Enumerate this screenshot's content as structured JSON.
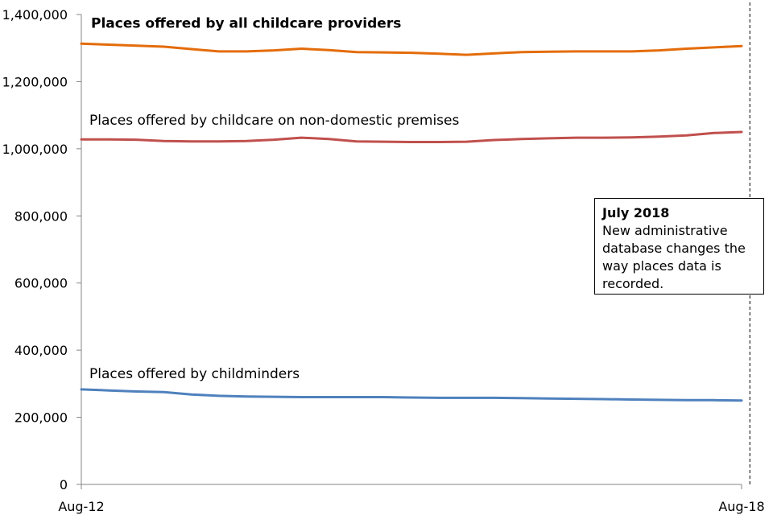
{
  "chart_data": {
    "type": "line",
    "title": "",
    "xlabel": "",
    "ylabel": "",
    "ylim": [
      0,
      1400000
    ],
    "yticks": [
      0,
      200000,
      400000,
      600000,
      800000,
      1000000,
      1200000,
      1400000
    ],
    "ytick_labels": [
      "0",
      "200,000",
      "400,000",
      "600,000",
      "800,000",
      "1,000,000",
      "1,200,000",
      "1,400,000"
    ],
    "xtick_labels": [
      "Aug-12",
      "Aug-18"
    ],
    "x_periods": 25,
    "grid": false,
    "legend": "none",
    "series": [
      {
        "name": "Places offered by all childcare providers",
        "color": "#E46C0A",
        "label_bold": true,
        "values": [
          1313000,
          1310000,
          1307000,
          1304000,
          1297000,
          1290000,
          1290000,
          1293000,
          1298000,
          1294000,
          1288000,
          1287000,
          1286000,
          1283000,
          1280000,
          1284000,
          1288000,
          1289000,
          1290000,
          1290000,
          1290000,
          1293000,
          1298000,
          1302000,
          1306000
        ]
      },
      {
        "name": "Places offered by childcare on non-domestic premises",
        "color": "#C0504D",
        "label_bold": false,
        "values": [
          1028000,
          1028000,
          1027000,
          1023000,
          1022000,
          1022000,
          1023000,
          1027000,
          1033000,
          1029000,
          1022000,
          1021000,
          1020000,
          1020000,
          1021000,
          1026000,
          1029000,
          1031000,
          1033000,
          1033000,
          1034000,
          1036000,
          1040000,
          1047000,
          1050000
        ]
      },
      {
        "name": "Places offered by childminders",
        "color": "#4F81BD",
        "label_bold": false,
        "values": [
          283000,
          280000,
          277000,
          275000,
          268000,
          264000,
          262000,
          261000,
          260000,
          260000,
          260000,
          260000,
          259000,
          258000,
          258000,
          258000,
          257000,
          256000,
          255000,
          254000,
          253000,
          252000,
          251000,
          251000,
          250000
        ]
      }
    ],
    "marker_line": {
      "x_period": 24.3,
      "style": "dashed"
    },
    "annotation": {
      "title": "July 2018",
      "text": "New administrative database changes the way places data is recorded."
    }
  }
}
